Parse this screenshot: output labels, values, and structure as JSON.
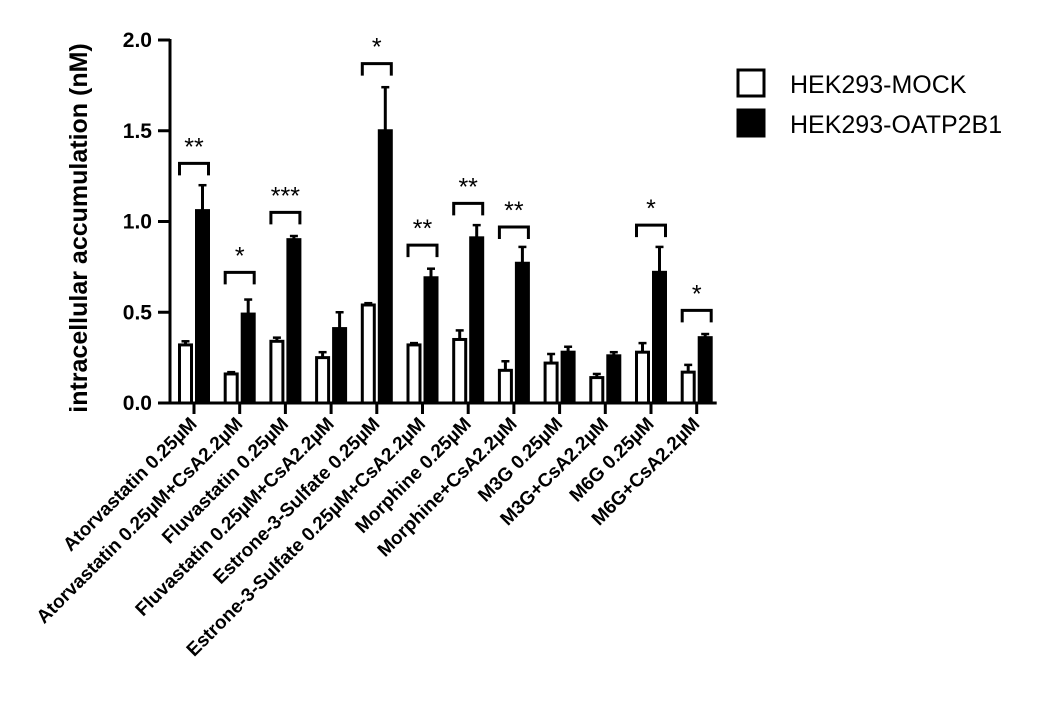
{
  "chart_data": {
    "type": "bar",
    "ylabel": "intracellular accumulation (nM)",
    "xlabel": "",
    "ylim": [
      0,
      2.0
    ],
    "yticks": [
      "0.0",
      "0.5",
      "1.0",
      "1.5",
      "2.0"
    ],
    "legend_position": "top-right",
    "categories": [
      "Atorvastatin 0.25µM",
      "Atorvastatin 0.25µM+CsA2.2µM",
      "Fluvastatin 0.25µM",
      "Fluvastatin 0.25µM+CsA2.2µM",
      "Estrone-3-Sulfate 0.25µM",
      "Estrone-3-Sulfate 0.25µM+CsA2.2µM",
      "Morphine 0.25µM",
      "Morphine+CsA2.2µM",
      "M3G 0.25µM",
      "M3G+CsA2.2µM",
      "M6G 0.25µM",
      "M6G+CsA2.2µM"
    ],
    "series": [
      {
        "name": "HEK293-MOCK",
        "color": "#ffffff",
        "values": [
          0.32,
          0.16,
          0.34,
          0.25,
          0.54,
          0.32,
          0.35,
          0.18,
          0.22,
          0.14,
          0.28,
          0.17
        ],
        "errors": [
          0.02,
          0.01,
          0.02,
          0.03,
          0.01,
          0.01,
          0.05,
          0.05,
          0.05,
          0.02,
          0.05,
          0.04
        ]
      },
      {
        "name": "HEK293-OATP2B1",
        "color": "#000000",
        "values": [
          1.06,
          0.49,
          0.9,
          0.41,
          1.5,
          0.69,
          0.91,
          0.77,
          0.28,
          0.26,
          0.72,
          0.36
        ],
        "errors": [
          0.14,
          0.08,
          0.02,
          0.09,
          0.24,
          0.05,
          0.07,
          0.09,
          0.03,
          0.02,
          0.14,
          0.02
        ]
      }
    ],
    "significance": [
      {
        "category": 0,
        "label": "**",
        "level": 1.32
      },
      {
        "category": 1,
        "label": "*",
        "level": 0.72
      },
      {
        "category": 2,
        "label": "***",
        "level": 1.05
      },
      {
        "category": 4,
        "label": "*",
        "level": 1.87
      },
      {
        "category": 5,
        "label": "**",
        "level": 0.87
      },
      {
        "category": 6,
        "label": "**",
        "level": 1.1
      },
      {
        "category": 7,
        "label": "**",
        "level": 0.97
      },
      {
        "category": 10,
        "label": "*",
        "level": 0.98
      },
      {
        "category": 11,
        "label": "*",
        "level": 0.51
      }
    ]
  }
}
